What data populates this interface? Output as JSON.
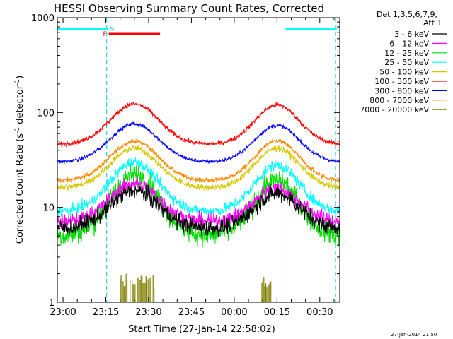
{
  "chart_data": {
    "type": "line",
    "title": "HESSI Observing Summary Count Rates, Corrected",
    "xlabel": "Start Time (27-Jan-14 22:58:02)",
    "ylabel_main": "Corrected Count Rate (s",
    "ylabel_sup1": "-1",
    "ylabel_mid": " detector",
    "ylabel_sup2": "-1",
    "ylabel_end": ")",
    "yscale": "log",
    "ylim": [
      1,
      1000
    ],
    "xlim_minutes": [
      -2,
      97
    ],
    "x_start": "22:58:02",
    "xticks": [
      {
        "min": 0,
        "label": "23:00"
      },
      {
        "min": 15,
        "label": "23:15"
      },
      {
        "min": 30,
        "label": "23:30"
      },
      {
        "min": 45,
        "label": "23:45"
      },
      {
        "min": 60,
        "label": "00:00"
      },
      {
        "min": 75,
        "label": "00:15"
      },
      {
        "min": 90,
        "label": "00:30"
      }
    ],
    "yticks": [
      {
        "val": 1,
        "label": "1"
      },
      {
        "val": 10,
        "label": "10"
      },
      {
        "val": 100,
        "label": "100"
      },
      {
        "val": 1000,
        "label": "1000"
      }
    ],
    "legend_header_1": "Det 1,3,5,6,7,9,",
    "legend_header_2": "Att 1",
    "legend_placement": "right",
    "series": [
      {
        "name": "3 - 6 keV",
        "color": "#000000",
        "base": 6.0,
        "peak": 15,
        "peak2": 14,
        "noise": 0.09
      },
      {
        "name": "6 - 12 keV",
        "color": "#ff00ff",
        "base": 7.0,
        "peak": 18,
        "peak2": 16,
        "noise": 0.08
      },
      {
        "name": "12 - 25 keV",
        "color": "#00dd00",
        "base": 5.0,
        "peak": 22,
        "peak2": 19,
        "noise": 0.12
      },
      {
        "name": "25 - 50 keV",
        "color": "#00ffff",
        "base": 9.0,
        "peak": 30,
        "peak2": 28,
        "noise": 0.06
      },
      {
        "name": "50 - 100 keV",
        "color": "#d8c800",
        "base": 16,
        "peak": 42,
        "peak2": 42,
        "noise": 0.035
      },
      {
        "name": "100 - 300 keV",
        "color": "#ff0000",
        "base": 46,
        "peak": 123,
        "peak2": 120,
        "noise": 0.025
      },
      {
        "name": "300 - 800 keV",
        "color": "#0000ff",
        "base": 30,
        "peak": 76,
        "peak2": 73,
        "noise": 0.02
      },
      {
        "name": "800 - 7000 keV",
        "color": "#ff8800",
        "base": 19,
        "peak": 50,
        "peak2": 50,
        "noise": 0.025
      },
      {
        "name": "7000 - 20000 keV",
        "color": "#808000",
        "base": 1,
        "peak": 1,
        "peak2": 1,
        "noise": 0
      }
    ],
    "bursts_olive": [
      [
        20,
        32
      ],
      [
        69,
        73
      ]
    ],
    "bars": [
      {
        "label": "",
        "color": "#00ffff",
        "from": -2,
        "to": 15
      },
      {
        "label": "N",
        "color": "#00ffff",
        "from": 15,
        "to": 15.8
      },
      {
        "label": "F",
        "color": "#ff0000",
        "from": 16,
        "to": 34
      },
      {
        "label": "",
        "color": "#00ffff",
        "from": 78,
        "to": 96
      }
    ],
    "vlines_dashed": [
      15.3,
      95.5
    ],
    "vlines_solid": [
      -2,
      78.5
    ],
    "timestamp": "27-Jan-2014 21:50"
  }
}
